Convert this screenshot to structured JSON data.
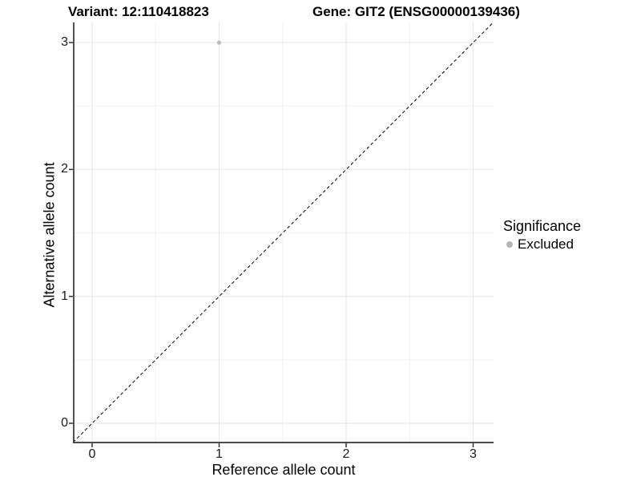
{
  "chart_data": {
    "type": "scatter",
    "title_left": "Variant: 12:110418823",
    "title_right": "Gene: GIT2 (ENSG00000139436)",
    "xlabel": "Reference allele count",
    "ylabel": "Alternative allele count",
    "xlim": [
      -0.15,
      3.17
    ],
    "ylim": [
      -0.15,
      3.17
    ],
    "x_ticks": [
      0,
      1,
      2,
      3
    ],
    "y_ticks": [
      0,
      1,
      2,
      3
    ],
    "minor_ticks": [
      0.5,
      1.5,
      2.5
    ],
    "grid": true,
    "legend_position": "right",
    "identity_line": {
      "style": "dashed",
      "color": "#000000"
    },
    "series": [
      {
        "name": "Excluded",
        "color": "#bdbdbd",
        "points": [
          {
            "x": 1,
            "y": 3
          }
        ]
      }
    ],
    "legend": {
      "title": "Significance",
      "items": [
        {
          "label": "Excluded",
          "color": "#b5b5b5"
        }
      ]
    },
    "colors": {
      "grid_major": "#e6e6e6",
      "grid_minor": "#f2f2f2",
      "axis": "#333333",
      "background": "#ffffff"
    }
  }
}
